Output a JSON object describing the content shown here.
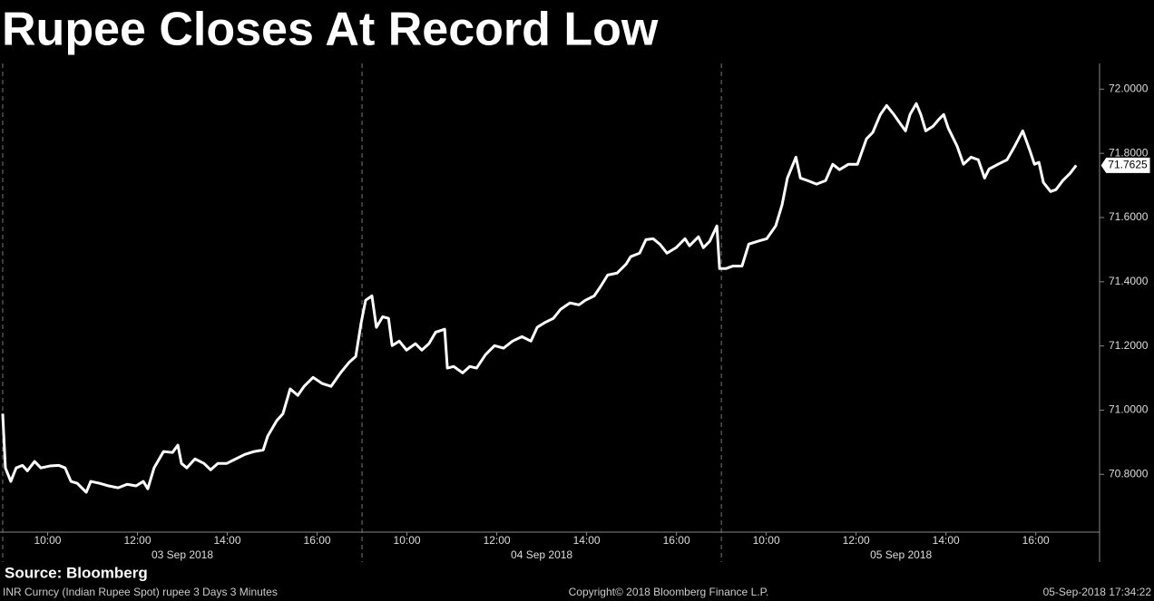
{
  "chart_data": {
    "type": "line",
    "title": "Rupee Closes At Record Low",
    "x": [
      0.0,
      0.06,
      0.18,
      0.3,
      0.44,
      0.55,
      0.71,
      0.85,
      1.05,
      1.25,
      1.39,
      1.52,
      1.66,
      1.86,
      1.96,
      2.16,
      2.36,
      2.57,
      2.77,
      2.97,
      3.13,
      3.23,
      3.37,
      3.58,
      3.78,
      3.9,
      3.98,
      4.1,
      4.28,
      4.48,
      4.63,
      4.79,
      4.99,
      5.19,
      5.39,
      5.6,
      5.8,
      5.9,
      6.1,
      6.24,
      6.4,
      6.57,
      6.71,
      6.91,
      7.11,
      7.31,
      7.52,
      7.72,
      7.86,
      7.98,
      8.08,
      8.22,
      8.32,
      8.46,
      8.59,
      8.67,
      8.83,
      8.99,
      9.19,
      9.33,
      9.49,
      9.64,
      9.84,
      9.9,
      10.04,
      10.24,
      10.4,
      10.55,
      10.75,
      10.95,
      11.15,
      11.35,
      11.56,
      11.76,
      11.9,
      12.06,
      12.26,
      12.42,
      12.63,
      12.83,
      12.97,
      13.17,
      13.31,
      13.47,
      13.68,
      13.88,
      13.98,
      14.18,
      14.32,
      14.48,
      14.63,
      14.79,
      14.99,
      15.19,
      15.29,
      15.49,
      15.6,
      15.74,
      15.9,
      15.96,
      16.1,
      16.26,
      16.46,
      16.61,
      16.81,
      17.01,
      17.21,
      17.35,
      17.47,
      17.66,
      17.76,
      17.92,
      18.12,
      18.32,
      18.48,
      18.63,
      18.83,
      19.03,
      19.23,
      19.37,
      19.54,
      19.68,
      19.84,
      19.98,
      20.1,
      20.2,
      20.34,
      20.44,
      20.55,
      20.71,
      20.85,
      20.95,
      21.05,
      21.25,
      21.39,
      21.56,
      21.72,
      21.86,
      21.96,
      22.16,
      22.36,
      22.53,
      22.71,
      22.87,
      22.97,
      23.07,
      23.17,
      23.33,
      23.45,
      23.6,
      23.76,
      23.9
    ],
    "values": [
      70.989,
      70.82,
      70.778,
      70.82,
      70.828,
      70.811,
      70.84,
      70.82,
      70.826,
      70.828,
      70.82,
      70.778,
      70.772,
      70.744,
      70.778,
      70.772,
      70.764,
      70.758,
      70.769,
      70.764,
      70.778,
      70.755,
      70.82,
      70.871,
      70.868,
      70.891,
      70.834,
      70.82,
      70.848,
      70.834,
      70.814,
      70.834,
      70.834,
      70.848,
      70.862,
      70.871,
      70.876,
      70.919,
      70.967,
      70.989,
      71.066,
      71.046,
      71.074,
      71.102,
      71.083,
      71.074,
      71.116,
      71.15,
      71.167,
      71.272,
      71.342,
      71.356,
      71.258,
      71.291,
      71.286,
      71.201,
      71.215,
      71.187,
      71.207,
      71.187,
      71.207,
      71.243,
      71.252,
      71.131,
      71.136,
      71.116,
      71.136,
      71.131,
      71.173,
      71.201,
      71.193,
      71.215,
      71.229,
      71.215,
      71.258,
      71.272,
      71.286,
      71.314,
      71.334,
      71.328,
      71.342,
      71.356,
      71.385,
      71.421,
      71.427,
      71.455,
      71.478,
      71.489,
      71.531,
      71.534,
      71.517,
      71.489,
      71.506,
      71.534,
      71.512,
      71.54,
      71.506,
      71.526,
      71.574,
      71.441,
      71.441,
      71.449,
      71.449,
      71.517,
      71.526,
      71.534,
      71.574,
      71.639,
      71.723,
      71.788,
      71.723,
      71.715,
      71.704,
      71.715,
      71.766,
      71.749,
      71.766,
      71.766,
      71.845,
      71.865,
      71.921,
      71.949,
      71.921,
      71.893,
      71.87,
      71.921,
      71.955,
      71.921,
      71.87,
      71.884,
      71.907,
      71.921,
      71.879,
      71.822,
      71.766,
      71.788,
      71.78,
      71.723,
      71.751,
      71.766,
      71.78,
      71.822,
      71.87,
      71.808,
      71.766,
      71.772,
      71.709,
      71.681,
      71.687,
      71.715,
      71.737,
      71.7625
    ],
    "color": "#ffffff",
    "xlim": [
      -0.06,
      24.42
    ],
    "xticks": [
      {
        "value": 1,
        "label": "10:00"
      },
      {
        "value": 3,
        "label": "12:00"
      },
      {
        "value": 5,
        "label": "14:00"
      },
      {
        "value": 7,
        "label": "16:00"
      },
      {
        "value": 9,
        "label": "10:00"
      },
      {
        "value": 11,
        "label": "12:00"
      },
      {
        "value": 13,
        "label": "14:00"
      },
      {
        "value": 15,
        "label": "16:00"
      },
      {
        "value": 17,
        "label": "10:00"
      },
      {
        "value": 19,
        "label": "12:00"
      },
      {
        "value": 21,
        "label": "14:00"
      },
      {
        "value": 23,
        "label": "16:00"
      }
    ],
    "day_labels": [
      {
        "value": 4,
        "label": "03 Sep 2018"
      },
      {
        "value": 12,
        "label": "04 Sep 2018"
      },
      {
        "value": 20,
        "label": "05 Sep 2018"
      }
    ],
    "ylim": [
      70.62,
      72.08
    ],
    "yticks": [
      {
        "value": 70.8,
        "label": "70.8000"
      },
      {
        "value": 71,
        "label": "71.0000"
      },
      {
        "value": 71.2,
        "label": "71.2000"
      },
      {
        "value": 71.4,
        "label": "71.4000"
      },
      {
        "value": 71.6,
        "label": "71.6000"
      },
      {
        "value": 71.8,
        "label": "71.8000"
      },
      {
        "value": 72,
        "label": "72.0000"
      }
    ],
    "source": "Source: Bloomberg",
    "footnote": "INR Curncy (Indian Rupee Spot) rupee 3 Days 3 Minutes",
    "copyright": "Copyright© 2018 Bloomberg Finance L.P.",
    "timestamp": "05-Sep-2018 17:34:22"
  }
}
